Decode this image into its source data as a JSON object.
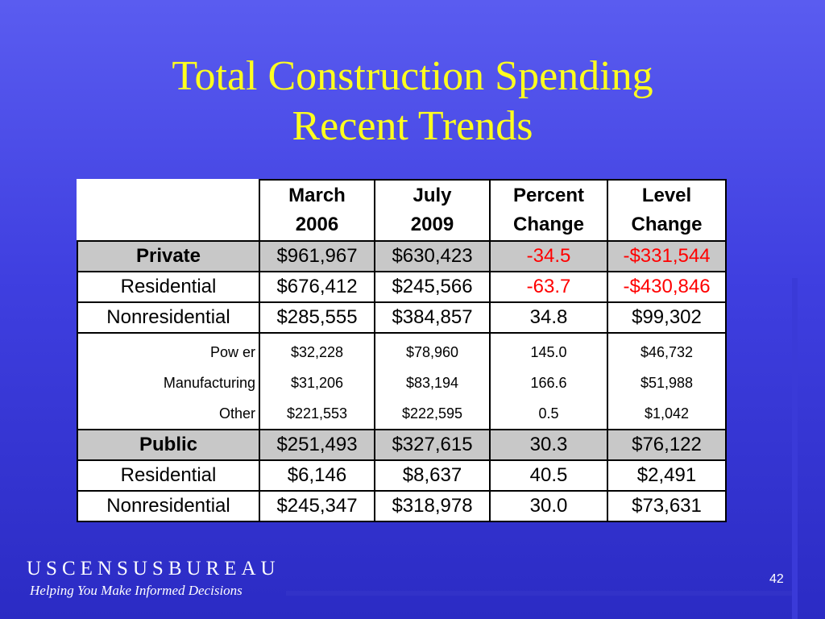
{
  "title": {
    "line1": "Total Construction Spending",
    "line2": "Recent Trends"
  },
  "table": {
    "headers": [
      {
        "line1": "March",
        "line2": "2006"
      },
      {
        "line1": "July",
        "line2": "2009"
      },
      {
        "line1": "Percent",
        "line2": "Change"
      },
      {
        "line1": "Level",
        "line2": "Change"
      }
    ],
    "rows": [
      {
        "label": "Private",
        "values": [
          "$961,967",
          "$630,423",
          "-34.5",
          "-$331,544"
        ]
      },
      {
        "label": "Residential",
        "values": [
          "$676,412",
          "$245,566",
          "-63.7",
          "-$430,846"
        ]
      },
      {
        "label": "Nonresidential",
        "values": [
          "$285,555",
          "$384,857",
          "34.8",
          "$99,302"
        ]
      },
      {
        "label": "Pow er",
        "values": [
          "$32,228",
          "$78,960",
          "145.0",
          "$46,732"
        ]
      },
      {
        "label": "Manufacturing",
        "values": [
          "$31,206",
          "$83,194",
          "166.6",
          "$51,988"
        ]
      },
      {
        "label": "Other",
        "values": [
          "$221,553",
          "$222,595",
          "0.5",
          "$1,042"
        ]
      },
      {
        "label": "Public",
        "values": [
          "$251,493",
          "$327,615",
          "30.3",
          "$76,122"
        ]
      },
      {
        "label": "Residential",
        "values": [
          "$6,146",
          "$8,637",
          "40.5",
          "$2,491"
        ]
      },
      {
        "label": "Nonresidential",
        "values": [
          "$245,347",
          "$318,978",
          "30.0",
          "$73,631"
        ]
      }
    ]
  },
  "footer": {
    "logo": "USCENSUSBUREAU",
    "tagline": "Helping You Make Informed Decisions",
    "page_number": "42"
  },
  "colors": {
    "title": "#ffff1e",
    "negative": "#ff0000",
    "shade": "#c8c8c8"
  }
}
